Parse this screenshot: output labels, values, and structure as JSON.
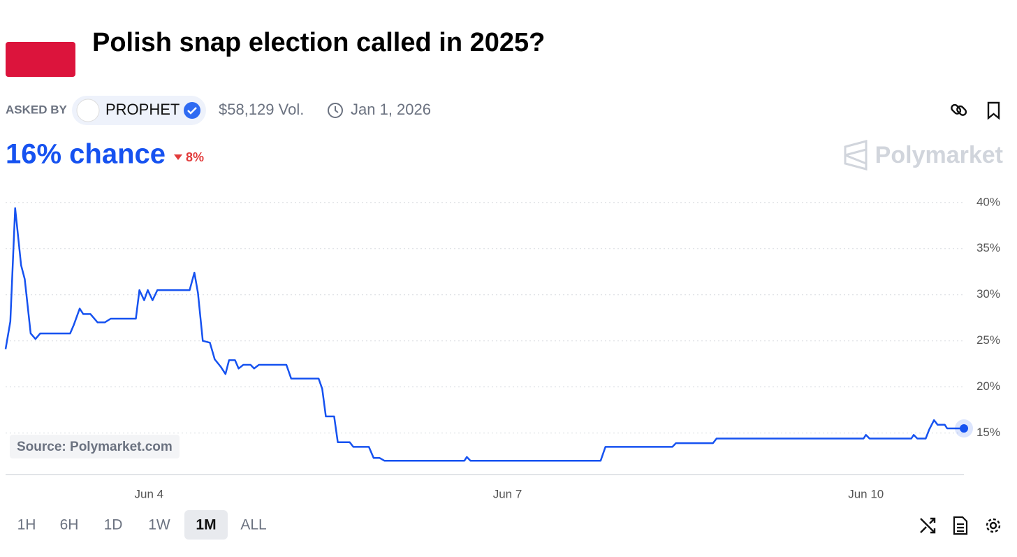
{
  "header": {
    "title": "Polish snap election called in 2025?",
    "asked_by_label": "ASKED BY",
    "asker": "PROPHET",
    "volume": "$58,129 Vol.",
    "end_date": "Jan 1, 2026",
    "chance": "16% chance",
    "change": "8%",
    "brand": "Polymarket",
    "source": "Source: Polymarket.com"
  },
  "ranges": [
    "1H",
    "6H",
    "1D",
    "1W",
    "1M",
    "ALL"
  ],
  "selected_range": "1M",
  "chart_data": {
    "type": "line",
    "color": "#1652f0",
    "grid": true,
    "x": [
      2.8,
      2.84,
      2.88,
      2.93,
      2.96,
      3.01,
      3.05,
      3.09,
      3.34,
      3.37,
      3.42,
      3.45,
      3.51,
      3.57,
      3.63,
      3.68,
      3.89,
      3.92,
      3.96,
      3.99,
      4.03,
      4.07,
      4.34,
      4.38,
      4.41,
      4.45,
      4.51,
      4.55,
      4.6,
      4.64,
      4.67,
      4.72,
      4.75,
      4.79,
      4.85,
      4.88,
      4.92,
      5.15,
      5.19,
      5.42,
      5.45,
      5.48,
      5.55,
      5.58,
      5.68,
      5.71,
      5.84,
      5.88,
      5.93,
      5.97,
      6.64,
      6.66,
      6.69,
      7.78,
      7.82,
      8.38,
      8.41,
      8.72,
      8.75,
      9.98,
      10.0,
      10.03,
      10.38,
      10.4,
      10.43,
      10.5,
      10.53,
      10.57,
      10.6,
      10.66,
      10.68,
      10.82
    ],
    "values": [
      24.1,
      27.1,
      39.4,
      33.2,
      31.7,
      25.8,
      25.2,
      25.8,
      25.8,
      26.7,
      28.5,
      27.9,
      27.9,
      27.0,
      27.0,
      27.4,
      27.4,
      30.5,
      29.4,
      30.5,
      29.4,
      30.5,
      30.5,
      32.4,
      30.2,
      25.0,
      24.8,
      23.0,
      22.2,
      21.4,
      22.9,
      22.9,
      22.0,
      22.4,
      22.4,
      22.0,
      22.4,
      22.4,
      20.9,
      20.9,
      19.8,
      16.8,
      16.8,
      14.0,
      14.0,
      13.5,
      13.5,
      12.3,
      12.3,
      12.0,
      12.0,
      12.4,
      12.0,
      12.0,
      13.5,
      13.5,
      13.9,
      13.9,
      14.4,
      14.4,
      14.8,
      14.4,
      14.4,
      14.8,
      14.4,
      14.4,
      15.4,
      16.4,
      15.9,
      15.9,
      15.5,
      15.5
    ],
    "xlim": [
      2.8,
      10.82
    ],
    "xticks": [
      {
        "value": 4,
        "label": "Jun 4"
      },
      {
        "value": 7,
        "label": "Jun 7"
      },
      {
        "value": 10,
        "label": "Jun 10"
      }
    ],
    "ylim": [
      10.5,
      41.5
    ],
    "yticks": [
      {
        "value": 15,
        "label": "15%"
      },
      {
        "value": 20,
        "label": "20%"
      },
      {
        "value": 25,
        "label": "25%"
      },
      {
        "value": 30,
        "label": "30%"
      },
      {
        "value": 35,
        "label": "35%"
      },
      {
        "value": 40,
        "label": "40%"
      }
    ]
  }
}
